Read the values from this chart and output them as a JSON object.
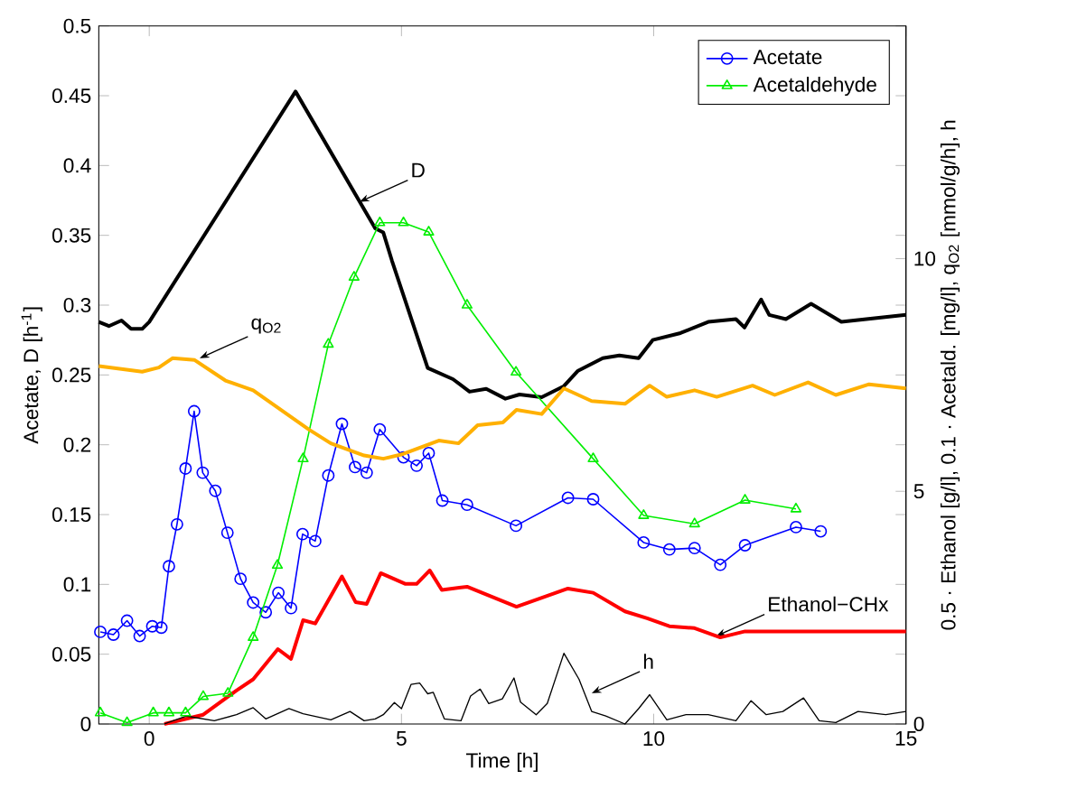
{
  "chart_data": {
    "type": "line",
    "xlabel": "Time [h]",
    "ylabel": "Acetate, D [h$^{-1}$]",
    "y2label": "0.5 · Ethanol [g/l], 0.1 · Acetald. [mg/l], q$_{O2}$ [mmol/g/h], h",
    "xlim": [
      -1,
      15
    ],
    "xticks": [
      0,
      5,
      10,
      15
    ],
    "ylim": [
      0,
      0.5
    ],
    "yticks": [
      0,
      0.05,
      0.1,
      0.15,
      0.2,
      0.25,
      0.3,
      0.35,
      0.4,
      0.45,
      0.5
    ],
    "y2lim": [
      0,
      15
    ],
    "y2ticks": [
      0,
      5,
      10
    ],
    "legend": "top right",
    "series": [
      {
        "name": "Acetate",
        "color": "#0000ff",
        "marker": "circle",
        "x": [
          -0.97,
          -0.71,
          -0.44,
          -0.19,
          0.06,
          0.24,
          0.39,
          0.55,
          0.72,
          0.89,
          1.06,
          1.31,
          1.55,
          1.81,
          2.06,
          2.31,
          2.56,
          2.81,
          3.04,
          3.29,
          3.55,
          3.82,
          4.08,
          4.31,
          4.57,
          5.04,
          5.3,
          5.54,
          5.81,
          6.3,
          7.27,
          8.3,
          8.8,
          9.8,
          10.31,
          10.81,
          11.32,
          11.81,
          12.82,
          13.31
        ],
        "values": [
          0.066,
          0.064,
          0.074,
          0.063,
          0.07,
          0.069,
          0.113,
          0.143,
          0.183,
          0.224,
          0.18,
          0.167,
          0.137,
          0.104,
          0.087,
          0.08,
          0.094,
          0.083,
          0.136,
          0.131,
          0.178,
          0.215,
          0.184,
          0.18,
          0.211,
          0.191,
          0.185,
          0.194,
          0.16,
          0.157,
          0.142,
          0.162,
          0.161,
          0.13,
          0.125,
          0.126,
          0.114,
          0.128,
          0.141,
          0.138
        ]
      },
      {
        "name": "Acetaldehyde",
        "color": "#00ee00",
        "marker": "triangle",
        "axis": "y2",
        "x": [
          -0.97,
          -0.44,
          0.08,
          0.39,
          0.72,
          1.07,
          1.56,
          2.06,
          2.54,
          3.05,
          3.55,
          4.06,
          4.57,
          5.04,
          5.54,
          6.3,
          7.27,
          8.8,
          9.8,
          10.81,
          11.81,
          12.82
        ],
        "values": [
          0.24,
          0.03,
          0.24,
          0.24,
          0.24,
          0.59,
          0.66,
          1.86,
          3.41,
          5.7,
          8.16,
          9.6,
          10.77,
          10.77,
          10.57,
          9.0,
          7.56,
          5.7,
          4.48,
          4.3,
          4.81,
          4.62
        ]
      },
      {
        "color": "#000000",
        "marker": "none",
        "x": [
          -1.0,
          -0.8,
          -0.55,
          -0.36,
          -0.14,
          0.0,
          2.9,
          4.48,
          4.64,
          4.81,
          5.52,
          6.02,
          6.35,
          6.68,
          7.06,
          7.34,
          7.78,
          8.22,
          8.5,
          8.99,
          9.32,
          9.7,
          9.98,
          10.53,
          11.08,
          11.63,
          11.8,
          12.13,
          12.29,
          12.62,
          13.12,
          13.72,
          15.0
        ],
        "values": [
          0.288,
          0.285,
          0.289,
          0.283,
          0.283,
          0.288,
          0.453,
          0.355,
          0.352,
          0.332,
          0.255,
          0.247,
          0.238,
          0.24,
          0.233,
          0.236,
          0.234,
          0.242,
          0.253,
          0.262,
          0.264,
          0.262,
          0.275,
          0.28,
          0.288,
          0.29,
          0.284,
          0.304,
          0.293,
          0.29,
          0.301,
          0.288,
          0.293
        ]
      },
      {
        "color": "#ffb000",
        "marker": "none",
        "axis": "y2",
        "x": [
          -1.0,
          -0.14,
          0.19,
          0.46,
          0.9,
          1.51,
          2.06,
          2.61,
          3.16,
          3.6,
          4.26,
          4.64,
          5.03,
          5.74,
          6.13,
          6.51,
          7.01,
          7.28,
          7.78,
          8.22,
          8.77,
          9.43,
          9.92,
          10.26,
          10.81,
          11.25,
          11.96,
          12.4,
          13.06,
          13.61,
          14.27,
          15.0
        ],
        "values": [
          7.69,
          7.57,
          7.66,
          7.86,
          7.82,
          7.38,
          7.17,
          6.75,
          6.33,
          6.03,
          5.77,
          5.7,
          5.8,
          6.09,
          6.03,
          6.42,
          6.48,
          6.75,
          6.66,
          7.21,
          6.94,
          6.88,
          7.27,
          7.03,
          7.17,
          7.03,
          7.27,
          7.07,
          7.34,
          7.07,
          7.3,
          7.21
        ]
      },
      {
        "color": "#ff0000",
        "marker": "none",
        "axis": "y2",
        "x": [
          0.3,
          1.07,
          1.73,
          2.06,
          2.55,
          2.81,
          3.05,
          3.29,
          3.82,
          4.09,
          4.31,
          4.59,
          5.08,
          5.3,
          5.56,
          5.8,
          6.3,
          7.28,
          8.3,
          8.8,
          9.43,
          9.87,
          10.31,
          10.81,
          11.32,
          11.81,
          15.0
        ],
        "values": [
          0,
          0.2,
          0.72,
          0.96,
          1.61,
          1.4,
          2.23,
          2.16,
          3.17,
          2.62,
          2.58,
          3.24,
          3.01,
          3.01,
          3.3,
          2.88,
          2.95,
          2.52,
          2.91,
          2.82,
          2.42,
          2.27,
          2.1,
          2.06,
          1.86,
          1.99,
          1.99
        ]
      },
      {
        "color": "#000000",
        "marker": "none",
        "axis": "y2",
        "x": [
          0.3,
          0.74,
          1.29,
          1.73,
          2.06,
          2.31,
          2.77,
          3.05,
          3.6,
          3.98,
          4.26,
          4.48,
          4.64,
          4.86,
          5.0,
          5.19,
          5.36,
          5.52,
          5.63,
          5.85,
          6.18,
          6.37,
          6.56,
          6.73,
          7.0,
          7.23,
          7.36,
          7.67,
          7.89,
          8.22,
          8.52,
          8.77,
          9.05,
          9.43,
          9.7,
          9.92,
          10.26,
          10.64,
          11.08,
          11.63,
          11.93,
          12.23,
          12.56,
          12.97,
          13.28,
          13.61,
          14.05,
          14.6,
          15.0
        ],
        "values": [
          0,
          0.17,
          0.07,
          0.2,
          0.35,
          0.11,
          0.33,
          0.22,
          0.09,
          0.27,
          0.07,
          0.11,
          0.2,
          0.46,
          0.33,
          0.85,
          0.88,
          0.65,
          0.68,
          0.11,
          0.07,
          0.6,
          0.75,
          0.44,
          0.54,
          0.99,
          0.47,
          0.2,
          0.44,
          1.52,
          0.96,
          0.27,
          0.17,
          0,
          0.33,
          0.63,
          0.09,
          0.2,
          0.2,
          0.07,
          0.5,
          0.2,
          0.27,
          0.56,
          0.07,
          0.03,
          0.27,
          0.2,
          0.27
        ]
      }
    ],
    "annotations": [
      {
        "text": "D",
        "x": 4.17,
        "y": 0.374
      },
      {
        "text": "q$_{O2}$",
        "x": 1.0,
        "y": 0.262
      },
      {
        "text": "Ethanol−CHx",
        "x": 11.24,
        "y": 0.063
      },
      {
        "text": "h",
        "x": 8.77,
        "y": 0.022
      }
    ]
  }
}
